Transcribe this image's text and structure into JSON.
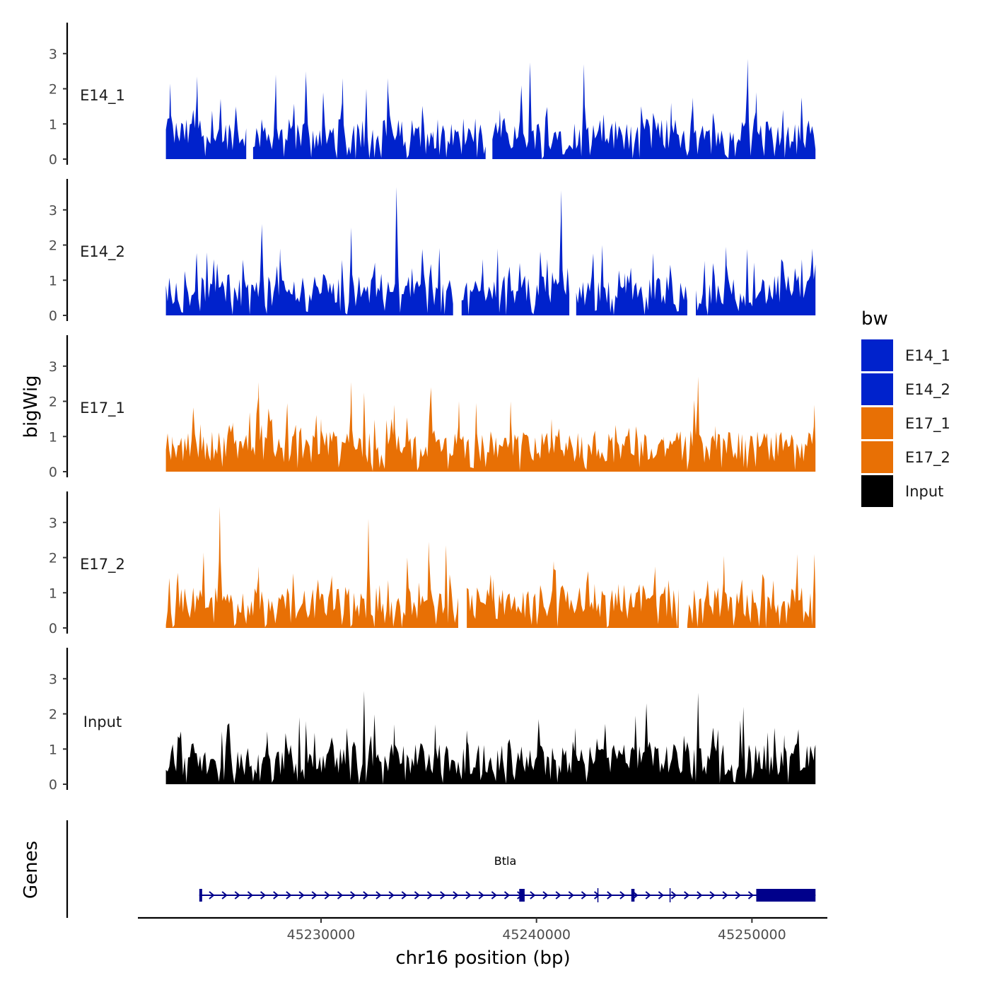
{
  "chart_data": {
    "type": "area",
    "title": "",
    "ylabel": "bigWig",
    "genes_label": "Genes",
    "xlabel": "chr16 position (bp)",
    "xlim": [
      45221500,
      45253500
    ],
    "data_xrange": [
      45222800,
      45252950
    ],
    "ylim": [
      0,
      3.8
    ],
    "y_ticks": [
      "0",
      "1",
      "2",
      "3"
    ],
    "x_ticks": [
      {
        "value": 45230000,
        "label": "45230000"
      },
      {
        "value": 45240000,
        "label": "45240000"
      },
      {
        "value": 45250000,
        "label": "45250000"
      }
    ],
    "series": [
      {
        "name": "E14_1",
        "color": "#0022CC",
        "gaps": [
          [
            45226570,
            45226770
          ],
          [
            45237700,
            45237900
          ]
        ],
        "peaks": [
          [
            45223000,
            2.15
          ],
          [
            45224250,
            2.35
          ],
          [
            45226050,
            1.5
          ],
          [
            45227900,
            2.4
          ],
          [
            45229300,
            2.5
          ],
          [
            45230100,
            1.9
          ],
          [
            45231000,
            2.3
          ],
          [
            45232100,
            2.0
          ],
          [
            45233100,
            2.3
          ],
          [
            45235200,
            0.8
          ],
          [
            45238300,
            1.4
          ],
          [
            45239300,
            2.1
          ],
          [
            45239700,
            2.75
          ],
          [
            45242200,
            2.7
          ],
          [
            45244200,
            1.0
          ],
          [
            45246250,
            1.6
          ],
          [
            45247250,
            1.75
          ],
          [
            45249800,
            2.85
          ],
          [
            45250200,
            1.9
          ],
          [
            45252300,
            1.75
          ]
        ]
      },
      {
        "name": "E14_2",
        "color": "#0022CC",
        "gaps": [
          [
            45236150,
            45236450
          ],
          [
            45241550,
            45241800
          ],
          [
            45247000,
            45247350
          ]
        ],
        "peaks": [
          [
            45224200,
            1.5
          ],
          [
            45227250,
            2.6
          ],
          [
            45228100,
            1.9
          ],
          [
            45231400,
            2.5
          ],
          [
            45232500,
            1.5
          ],
          [
            45233500,
            3.65
          ],
          [
            45234700,
            1.9
          ],
          [
            45237500,
            1.6
          ],
          [
            45238200,
            1.9
          ],
          [
            45240500,
            1.6
          ],
          [
            45241150,
            3.55
          ],
          [
            45243050,
            2.0
          ],
          [
            45244100,
            1.2
          ],
          [
            45247800,
            1.55
          ],
          [
            45248800,
            1.95
          ],
          [
            45250100,
            1.5
          ],
          [
            45252800,
            1.9
          ]
        ]
      },
      {
        "name": "E17_1",
        "color": "#E87005",
        "gaps": [],
        "peaks": [
          [
            45223100,
            1.0
          ],
          [
            45224400,
            1.35
          ],
          [
            45225900,
            1.4
          ],
          [
            45227100,
            2.55
          ],
          [
            45228700,
            1.0
          ],
          [
            45230000,
            1.5
          ],
          [
            45231400,
            2.55
          ],
          [
            45232000,
            2.25
          ],
          [
            45233400,
            1.9
          ],
          [
            45235100,
            2.4
          ],
          [
            45236400,
            2.0
          ],
          [
            45237200,
            1.95
          ],
          [
            45238800,
            2.0
          ],
          [
            45240700,
            1.5
          ],
          [
            45242100,
            1.0
          ],
          [
            45244300,
            1.25
          ],
          [
            45245900,
            1.0
          ],
          [
            45247500,
            2.7
          ],
          [
            45248300,
            1.3
          ],
          [
            45250700,
            1.1
          ],
          [
            45252900,
            1.9
          ]
        ]
      },
      {
        "name": "E17_2",
        "color": "#E87005",
        "gaps": [
          [
            45236400,
            45236700
          ],
          [
            45246650,
            45246950
          ]
        ],
        "peaks": [
          [
            45223300,
            1.2
          ],
          [
            45224550,
            2.15
          ],
          [
            45225300,
            3.45
          ],
          [
            45227100,
            1.75
          ],
          [
            45228700,
            1.55
          ],
          [
            45230500,
            1.5
          ],
          [
            45232200,
            3.1
          ],
          [
            45234000,
            2.0
          ],
          [
            45235000,
            2.45
          ],
          [
            45235800,
            2.35
          ],
          [
            45238000,
            1.4
          ],
          [
            45240800,
            1.9
          ],
          [
            45242700,
            1.25
          ],
          [
            45243800,
            1.25
          ],
          [
            45245500,
            1.75
          ],
          [
            45248700,
            2.05
          ],
          [
            45251000,
            1.35
          ],
          [
            45252100,
            2.1
          ],
          [
            45252900,
            2.1
          ]
        ]
      },
      {
        "name": "Input",
        "color": "#000000",
        "gaps": [],
        "peaks": [
          [
            45223500,
            1.5
          ],
          [
            45225400,
            1.5
          ],
          [
            45227500,
            1.5
          ],
          [
            45229300,
            1.8
          ],
          [
            45231200,
            1.6
          ],
          [
            45232000,
            2.65
          ],
          [
            45233400,
            1.7
          ],
          [
            45235300,
            1.7
          ],
          [
            45236800,
            1.2
          ],
          [
            45238400,
            1.1
          ],
          [
            45240100,
            1.85
          ],
          [
            45241800,
            1.6
          ],
          [
            45242800,
            1.3
          ],
          [
            45244600,
            1.95
          ],
          [
            45245100,
            2.3
          ],
          [
            45247500,
            2.6
          ],
          [
            45248200,
            1.6
          ],
          [
            45249600,
            2.2
          ],
          [
            45251500,
            1.4
          ],
          [
            45252900,
            1.0
          ]
        ]
      }
    ],
    "gene": {
      "name": "Btla",
      "color": "#00008B",
      "start": 45224350,
      "end": 45252950,
      "strand": "+",
      "exons": [
        [
          45224350,
          45224480
        ],
        [
          45239200,
          45239450
        ],
        [
          45244400,
          45244550
        ],
        [
          45250200,
          45252950
        ]
      ],
      "ticks": [
        45242850,
        45246200
      ]
    },
    "legend": {
      "title": "bw",
      "placement": "right",
      "entries": [
        {
          "label": "E14_1",
          "color": "#0022CC"
        },
        {
          "label": "E14_2",
          "color": "#0022CC"
        },
        {
          "label": "E17_1",
          "color": "#E87005"
        },
        {
          "label": "E17_2",
          "color": "#E87005"
        },
        {
          "label": "Input",
          "color": "#000000"
        }
      ]
    }
  }
}
